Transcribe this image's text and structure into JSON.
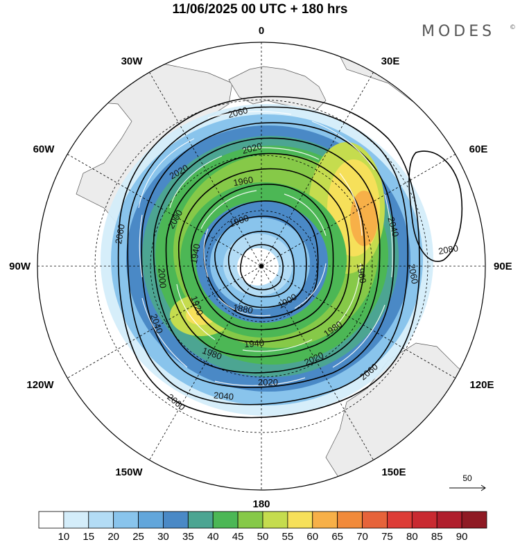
{
  "title": "11/06/2025  00 UTC  + 180 hrs",
  "brand": "MODES",
  "brand_mark": "©",
  "longitude_labels": {
    "n0": "0",
    "n30e": "30E",
    "n60e": "60E",
    "n90e": "90E",
    "n120e": "120E",
    "n150e": "150E",
    "n180": "180",
    "n150w": "150W",
    "n120w": "120W",
    "n90w": "90W",
    "n60w": "60W",
    "n30w": "30W"
  },
  "contour_labels": [
    {
      "text": "2060",
      "id": "c2060a"
    },
    {
      "text": "2060",
      "id": "c2060b"
    },
    {
      "text": "2060",
      "id": "c2060c"
    },
    {
      "text": "2060",
      "id": "c2060d"
    },
    {
      "text": "2060",
      "id": "c2060e"
    },
    {
      "text": "2040",
      "id": "c2040a"
    },
    {
      "text": "2040",
      "id": "c2040b"
    },
    {
      "text": "2040",
      "id": "c2040c"
    },
    {
      "text": "2020",
      "id": "c2020a"
    },
    {
      "text": "2020",
      "id": "c2020b"
    },
    {
      "text": "2020",
      "id": "c2020c"
    },
    {
      "text": "2020",
      "id": "c2020d"
    },
    {
      "text": "2000",
      "id": "c2000a"
    },
    {
      "text": "2000",
      "id": "c2000b"
    },
    {
      "text": "1980",
      "id": "c1980a"
    },
    {
      "text": "1980",
      "id": "c1980b"
    },
    {
      "text": "1960",
      "id": "c1960a"
    },
    {
      "text": "1960",
      "id": "c1960b"
    },
    {
      "text": "1940",
      "id": "c1940a"
    },
    {
      "text": "1940",
      "id": "c1940b"
    },
    {
      "text": "1920",
      "id": "c1920a"
    },
    {
      "text": "1900",
      "id": "c1900a"
    },
    {
      "text": "1900",
      "id": "c1900b"
    },
    {
      "text": "1880",
      "id": "c1880a"
    },
    {
      "text": "2080",
      "id": "c2080a"
    }
  ],
  "reference_vector_label": "50",
  "colorbar": {
    "colors": [
      "#ffffff",
      "#d4edfa",
      "#b3dcf5",
      "#89c4ec",
      "#62a6db",
      "#4a89c6",
      "#4ca592",
      "#4cb755",
      "#86c948",
      "#c5dc4e",
      "#f6e05a",
      "#f7b048",
      "#f18a3a",
      "#e6633a",
      "#dd3c36",
      "#c92a31",
      "#b01e2d",
      "#8f1a24"
    ],
    "labels": [
      "10",
      "15",
      "20",
      "25",
      "30",
      "35",
      "40",
      "45",
      "50",
      "55",
      "60",
      "65",
      "70",
      "75",
      "80",
      "85",
      "90"
    ]
  }
}
